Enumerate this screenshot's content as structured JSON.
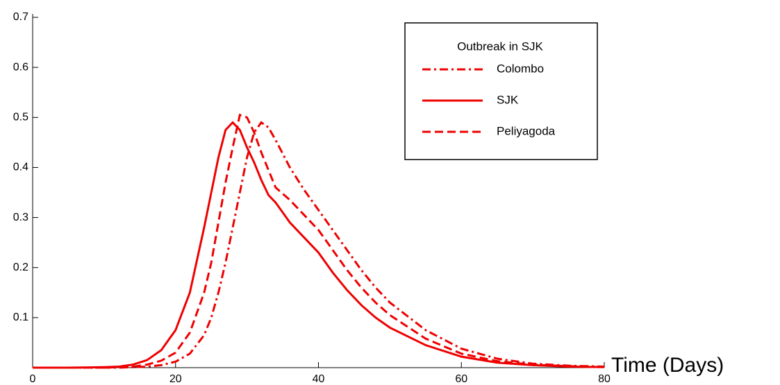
{
  "chart_data": {
    "type": "line",
    "x_label": "Time (Days)",
    "legend_title": "Outbreak in SJK",
    "x": [
      0,
      5,
      10,
      12,
      14,
      16,
      18,
      20,
      22,
      24,
      25,
      26,
      27,
      28,
      29,
      30,
      31,
      32,
      33,
      34,
      36,
      38,
      40,
      42,
      44,
      46,
      48,
      50,
      55,
      60,
      65,
      70,
      75,
      80
    ],
    "series": [
      {
        "name": "Colombo",
        "color": "#ee0000",
        "dash": "dashdot",
        "values": [
          0,
          0,
          0,
          0,
          0.001,
          0.002,
          0.005,
          0.012,
          0.028,
          0.065,
          0.1,
          0.15,
          0.21,
          0.28,
          0.35,
          0.42,
          0.47,
          0.49,
          0.48,
          0.455,
          0.4,
          0.355,
          0.315,
          0.275,
          0.235,
          0.195,
          0.16,
          0.13,
          0.075,
          0.038,
          0.018,
          0.008,
          0.004,
          0.002
        ]
      },
      {
        "name": "SJK",
        "color": "#ee0000",
        "dash": "solid",
        "values": [
          0,
          0,
          0.001,
          0.002,
          0.006,
          0.015,
          0.035,
          0.075,
          0.15,
          0.28,
          0.35,
          0.42,
          0.475,
          0.49,
          0.475,
          0.44,
          0.41,
          0.375,
          0.345,
          0.33,
          0.29,
          0.26,
          0.23,
          0.19,
          0.155,
          0.125,
          0.1,
          0.08,
          0.045,
          0.022,
          0.01,
          0.005,
          0.002,
          0.001
        ]
      },
      {
        "name": "Peliyagoda",
        "color": "#ee0000",
        "dash": "dashed",
        "values": [
          0,
          0,
          0,
          0.001,
          0.002,
          0.006,
          0.014,
          0.03,
          0.07,
          0.15,
          0.21,
          0.29,
          0.37,
          0.44,
          0.505,
          0.5,
          0.47,
          0.43,
          0.395,
          0.36,
          0.335,
          0.305,
          0.275,
          0.235,
          0.195,
          0.16,
          0.13,
          0.105,
          0.058,
          0.028,
          0.013,
          0.006,
          0.003,
          0.001
        ]
      }
    ],
    "xlim": [
      0,
      80
    ],
    "xticks": [
      0,
      20,
      40,
      60,
      80
    ],
    "ylim": [
      0,
      0.7
    ],
    "yticks": [
      0.1,
      0.2,
      0.3,
      0.4,
      0.5,
      0.6,
      0.7
    ]
  }
}
